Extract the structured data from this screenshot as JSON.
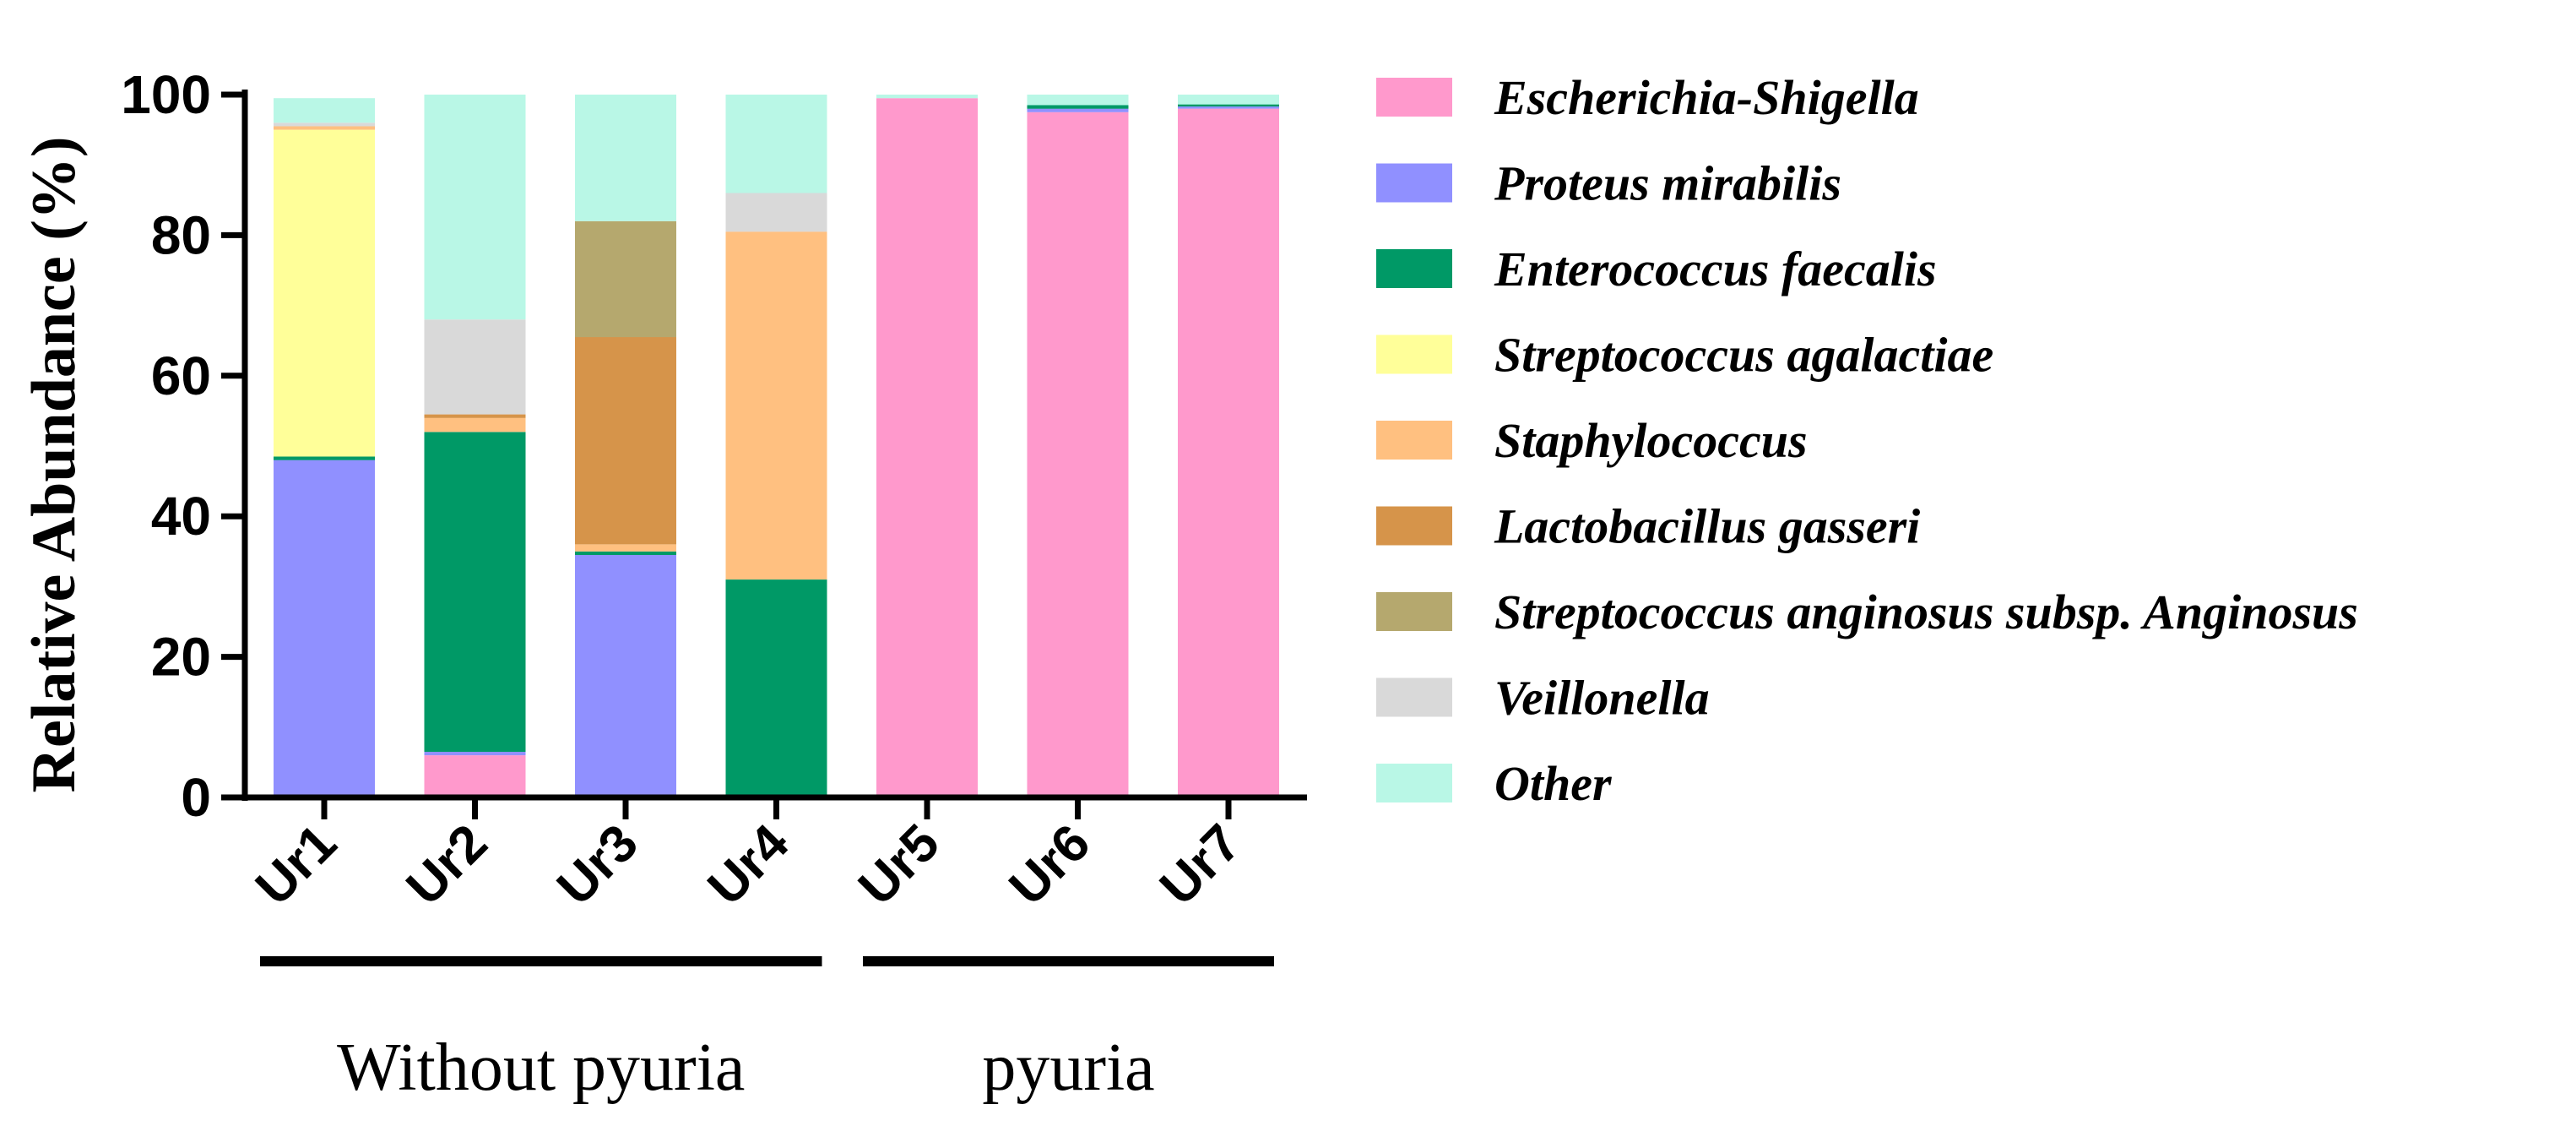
{
  "chart_data": {
    "type": "bar",
    "stacked": true,
    "ylabel": "Relative Abundance (%)",
    "ylim": [
      0,
      100
    ],
    "yticks": [
      "0",
      "20",
      "40",
      "60",
      "80",
      "100"
    ],
    "categories": [
      "Ur1",
      "Ur2",
      "Ur3",
      "Ur4",
      "Ur5",
      "Ur6",
      "Ur7"
    ],
    "groups": [
      {
        "label": "Without pyuria",
        "categories": [
          "Ur1",
          "Ur2",
          "Ur3",
          "Ur4"
        ]
      },
      {
        "label": "pyuria",
        "categories": [
          "Ur5",
          "Ur6",
          "Ur7"
        ]
      }
    ],
    "legend_position": "right",
    "series": [
      {
        "name": "Escherichia-Shigella",
        "color": "#FF99CC",
        "values": [
          0,
          6,
          0,
          0,
          99.5,
          97.5,
          98
        ]
      },
      {
        "name": "Proteus mirabilis",
        "color": "#9090FF",
        "values": [
          48,
          0.5,
          34.5,
          0,
          0,
          0.5,
          0.3
        ]
      },
      {
        "name": "Enterococcus faecalis",
        "color": "#009966",
        "values": [
          0.5,
          45.5,
          0.5,
          31,
          0,
          0.5,
          0.3
        ]
      },
      {
        "name": "Streptococcus agalactiae",
        "color": "#FFFF99",
        "values": [
          46.5,
          0,
          0,
          0,
          0,
          0,
          0
        ]
      },
      {
        "name": "Staphylococcus",
        "color": "#FFC080",
        "values": [
          0.5,
          2,
          1,
          49.5,
          0,
          0,
          0
        ]
      },
      {
        "name": "Lactobacillus gasseri",
        "color": "#D6944A",
        "values": [
          0,
          0.5,
          29.5,
          0,
          0,
          0,
          0
        ]
      },
      {
        "name": "Streptococcus anginosus subsp. Anginosus",
        "color": "#B5A86E",
        "values": [
          0,
          0,
          16.5,
          0,
          0,
          0,
          0
        ]
      },
      {
        "name": "Veillonella",
        "color": "#D9D9D9",
        "values": [
          0.5,
          13.5,
          0,
          5.5,
          0,
          0,
          0
        ]
      },
      {
        "name": "Other",
        "color": "#B9F7E6",
        "values": [
          3.5,
          32,
          18,
          14,
          0.5,
          1.5,
          1.4
        ]
      }
    ]
  }
}
